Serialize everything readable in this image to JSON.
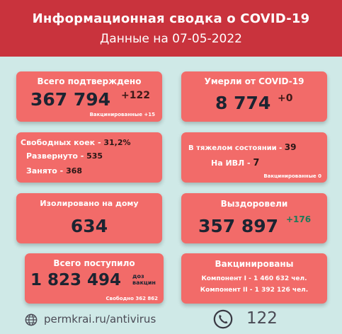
{
  "header": {
    "title": "Информационная сводка о COVID-19",
    "subtitle": "Данные на 07-05-2022"
  },
  "confirmed": {
    "label": "Всего подтверждено",
    "value": "367 794",
    "delta": "+122",
    "vaccinated_note": "Вакцинированные +15"
  },
  "deaths": {
    "label": "Умерли от COVID-19",
    "value": "8 774",
    "delta": "+0"
  },
  "beds": {
    "free_label": "Свободных коек",
    "free_value": "31,2%",
    "deployed_label": "Развернуто",
    "deployed_value": "535",
    "occupied_label": "Занято",
    "occupied_value": "368"
  },
  "severe": {
    "severe_label": "В тяжелом состоянии",
    "severe_value": "39",
    "ventilator_label": "На ИВЛ",
    "ventilator_value": "7",
    "vaccinated_note": "Вакцинированные 0"
  },
  "isolated": {
    "label": "Изолировано на дому",
    "value": "634"
  },
  "recovered": {
    "label": "Выздоровели",
    "value": "357 897",
    "delta": "+176"
  },
  "received": {
    "label": "Всего поступило",
    "value": "1 823 494",
    "unit_line1": "доз",
    "unit_line2": "вакцин",
    "free_note": "Свободно 362 862"
  },
  "vaccinated": {
    "label": "Вакцинированы",
    "component1": "Компонент I - 1 460 632 чел.",
    "component2": "Компонент II - 1 392 126 чел."
  },
  "footer": {
    "website": "permkrai.ru/antivirus",
    "phone": "122"
  },
  "colors": {
    "header_bg": "#c9333d",
    "card_bg": "#f26b69",
    "page_bg": "#cfe9e7",
    "number_dark": "#1c2431",
    "delta_green": "#1d7a59"
  }
}
